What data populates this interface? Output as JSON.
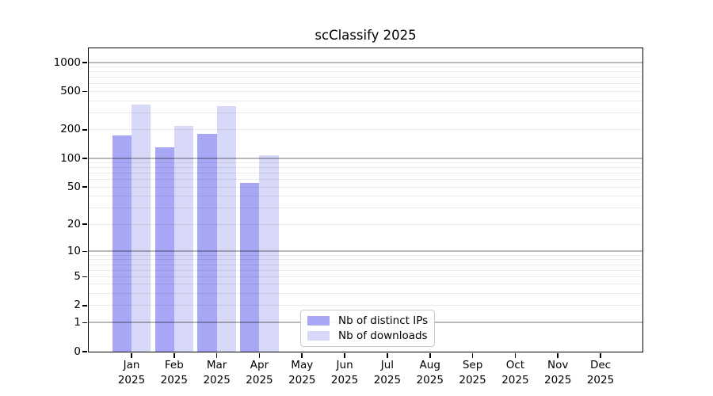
{
  "title": "scClassify 2025",
  "chart_data": {
    "type": "bar",
    "title": "scClassify 2025",
    "categories": [
      "Jan 2025",
      "Feb 2025",
      "Mar 2025",
      "Apr 2025",
      "May 2025",
      "Jun 2025",
      "Jul 2025",
      "Aug 2025",
      "Sep 2025",
      "Oct 2025",
      "Nov 2025",
      "Dec 2025"
    ],
    "series": [
      {
        "name": "Nb of distinct IPs",
        "color": "#a7a7f6",
        "values": [
          175,
          130,
          180,
          55,
          null,
          null,
          null,
          null,
          null,
          null,
          null,
          null
        ]
      },
      {
        "name": "Nb of downloads",
        "color": "#d8d8f8",
        "values": [
          365,
          220,
          355,
          108,
          null,
          null,
          null,
          null,
          null,
          null,
          null,
          null
        ]
      }
    ],
    "xlabel": "",
    "ylabel": "",
    "yscale": "log10(value+1)",
    "ylim": [
      0,
      1400
    ],
    "yticks": [
      0,
      1,
      2,
      5,
      10,
      20,
      50,
      100,
      200,
      500,
      1000
    ],
    "major_gridlines": [
      1,
      10,
      100,
      1000
    ],
    "grid": true,
    "legend_position": "lower center-left inside plot"
  },
  "legend": {
    "items": [
      {
        "label": "Nb of distinct IPs",
        "color": "#a7a7f6"
      },
      {
        "label": "Nb of downloads",
        "color": "#d8d8f8"
      }
    ]
  },
  "colors": {
    "bar_distinct_ips": "#a7a7f6",
    "bar_downloads": "#d8d8f8",
    "spine": "#000000",
    "major_grid": "rgba(0,0,0,0.28)",
    "minor_grid": "rgba(0,0,0,0.08)",
    "legend_border": "#c9c9c9",
    "background": "#ffffff"
  }
}
